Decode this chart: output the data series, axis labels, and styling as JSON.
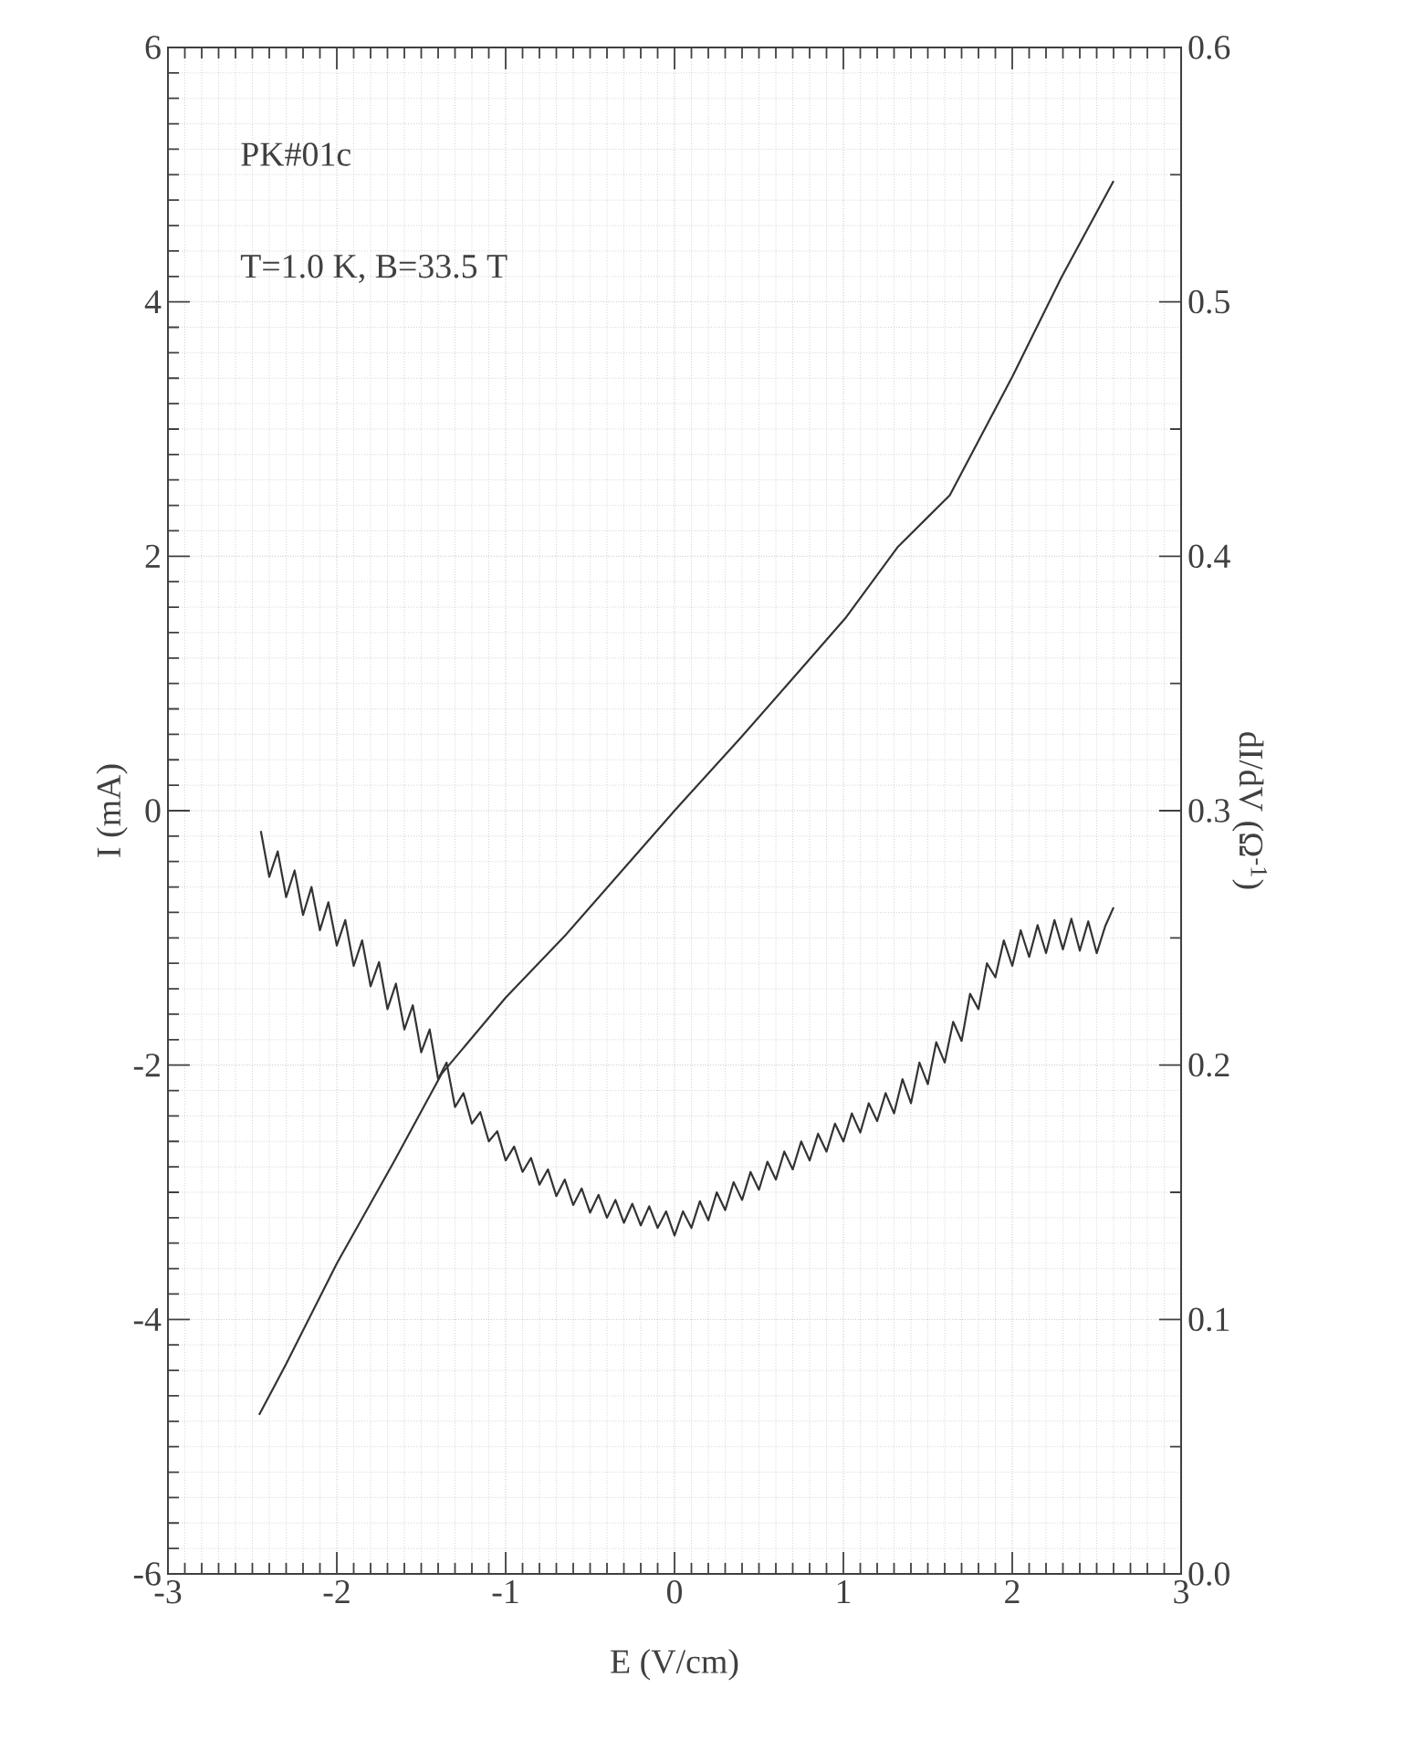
{
  "chart_data": {
    "type": "line",
    "xlabel": "E (V/cm)",
    "ylabel": "I (mA)",
    "y2label": "dI/dV (Ω$^{-1}$)",
    "annotations": [
      "PK#01c",
      "T=1.0 K, B=33.5 T"
    ],
    "xlim": [
      -3,
      3
    ],
    "xticks": [
      -3,
      -2,
      -1,
      0,
      1,
      2,
      3
    ],
    "ylim": [
      -6,
      6
    ],
    "yticks": [
      -6,
      -4,
      -2,
      0,
      2,
      4,
      6
    ],
    "y2lim": [
      0,
      0.6
    ],
    "y2ticks": [
      {
        "value": 0,
        "label": "0.0"
      },
      0.1,
      0.2,
      0.3,
      0.4,
      0.5,
      0.6
    ],
    "grid": true,
    "series": [
      {
        "color": "#333333",
        "x": [
          -2.46,
          -2.3,
          -2.0,
          -1.67,
          -1.38,
          -1.0,
          -0.64,
          0,
          0.39,
          0.76,
          1.01,
          1.32,
          1.63,
          2.0,
          2.29,
          2.6
        ],
        "values": [
          -4.75,
          -4.35,
          -3.56,
          -2.78,
          -2.07,
          -1.47,
          -0.97,
          0,
          0.57,
          1.13,
          1.51,
          2.07,
          2.48,
          3.41,
          4.19,
          4.95
        ]
      },
      {
        "color": "#333333",
        "axis": "y2",
        "x": [
          -2.45,
          -2.4,
          -2.35,
          -2.3,
          -2.25,
          -2.2,
          -2.15,
          -2.1,
          -2.05,
          -2.0,
          -1.95,
          -1.9,
          -1.85,
          -1.8,
          -1.75,
          -1.7,
          -1.65,
          -1.6,
          -1.55,
          -1.5,
          -1.45,
          -1.4,
          -1.35,
          -1.3,
          -1.25,
          -1.2,
          -1.15,
          -1.1,
          -1.05,
          -1.0,
          -0.95,
          -0.9,
          -0.85,
          -0.8,
          -0.75,
          -0.7,
          -0.65,
          -0.6,
          -0.55,
          -0.5,
          -0.45,
          -0.4,
          -0.35,
          -0.3,
          -0.25,
          -0.2,
          -0.15,
          -0.1,
          -0.05,
          0.0,
          0.05,
          0.1,
          0.15,
          0.2,
          0.25,
          0.3,
          0.35,
          0.4,
          0.45,
          0.5,
          0.55,
          0.6,
          0.65,
          0.7,
          0.75,
          0.8,
          0.85,
          0.9,
          0.95,
          1.0,
          1.05,
          1.1,
          1.15,
          1.2,
          1.25,
          1.3,
          1.35,
          1.4,
          1.45,
          1.5,
          1.55,
          1.6,
          1.65,
          1.7,
          1.75,
          1.8,
          1.85,
          1.9,
          1.95,
          2.0,
          2.05,
          2.1,
          2.15,
          2.2,
          2.25,
          2.3,
          2.35,
          2.4,
          2.45,
          2.5,
          2.55,
          2.6
        ],
        "values": [
          0.292,
          0.274,
          0.284,
          0.266,
          0.2765,
          0.259,
          0.27,
          0.253,
          0.264,
          0.247,
          0.257,
          0.239,
          0.249,
          0.231,
          0.2405,
          0.222,
          0.232,
          0.214,
          0.2235,
          0.205,
          0.214,
          0.1945,
          0.201,
          0.1835,
          0.189,
          0.177,
          0.1815,
          0.17,
          0.174,
          0.1625,
          0.168,
          0.158,
          0.1635,
          0.153,
          0.159,
          0.1485,
          0.155,
          0.145,
          0.1515,
          0.142,
          0.149,
          0.14,
          0.147,
          0.138,
          0.1455,
          0.137,
          0.1445,
          0.136,
          0.1425,
          0.133,
          0.1425,
          0.136,
          0.1465,
          0.139,
          0.15,
          0.143,
          0.154,
          0.147,
          0.158,
          0.151,
          0.162,
          0.155,
          0.166,
          0.159,
          0.17,
          0.1625,
          0.173,
          0.166,
          0.177,
          0.17,
          0.181,
          0.1735,
          0.185,
          0.178,
          0.189,
          0.181,
          0.1945,
          0.185,
          0.201,
          0.1925,
          0.209,
          0.201,
          0.217,
          0.2095,
          0.228,
          0.222,
          0.24,
          0.2345,
          0.249,
          0.239,
          0.253,
          0.2425,
          0.255,
          0.244,
          0.257,
          0.2455,
          0.2575,
          0.245,
          0.2565,
          0.244,
          0.2545,
          0.262
        ]
      }
    ]
  }
}
